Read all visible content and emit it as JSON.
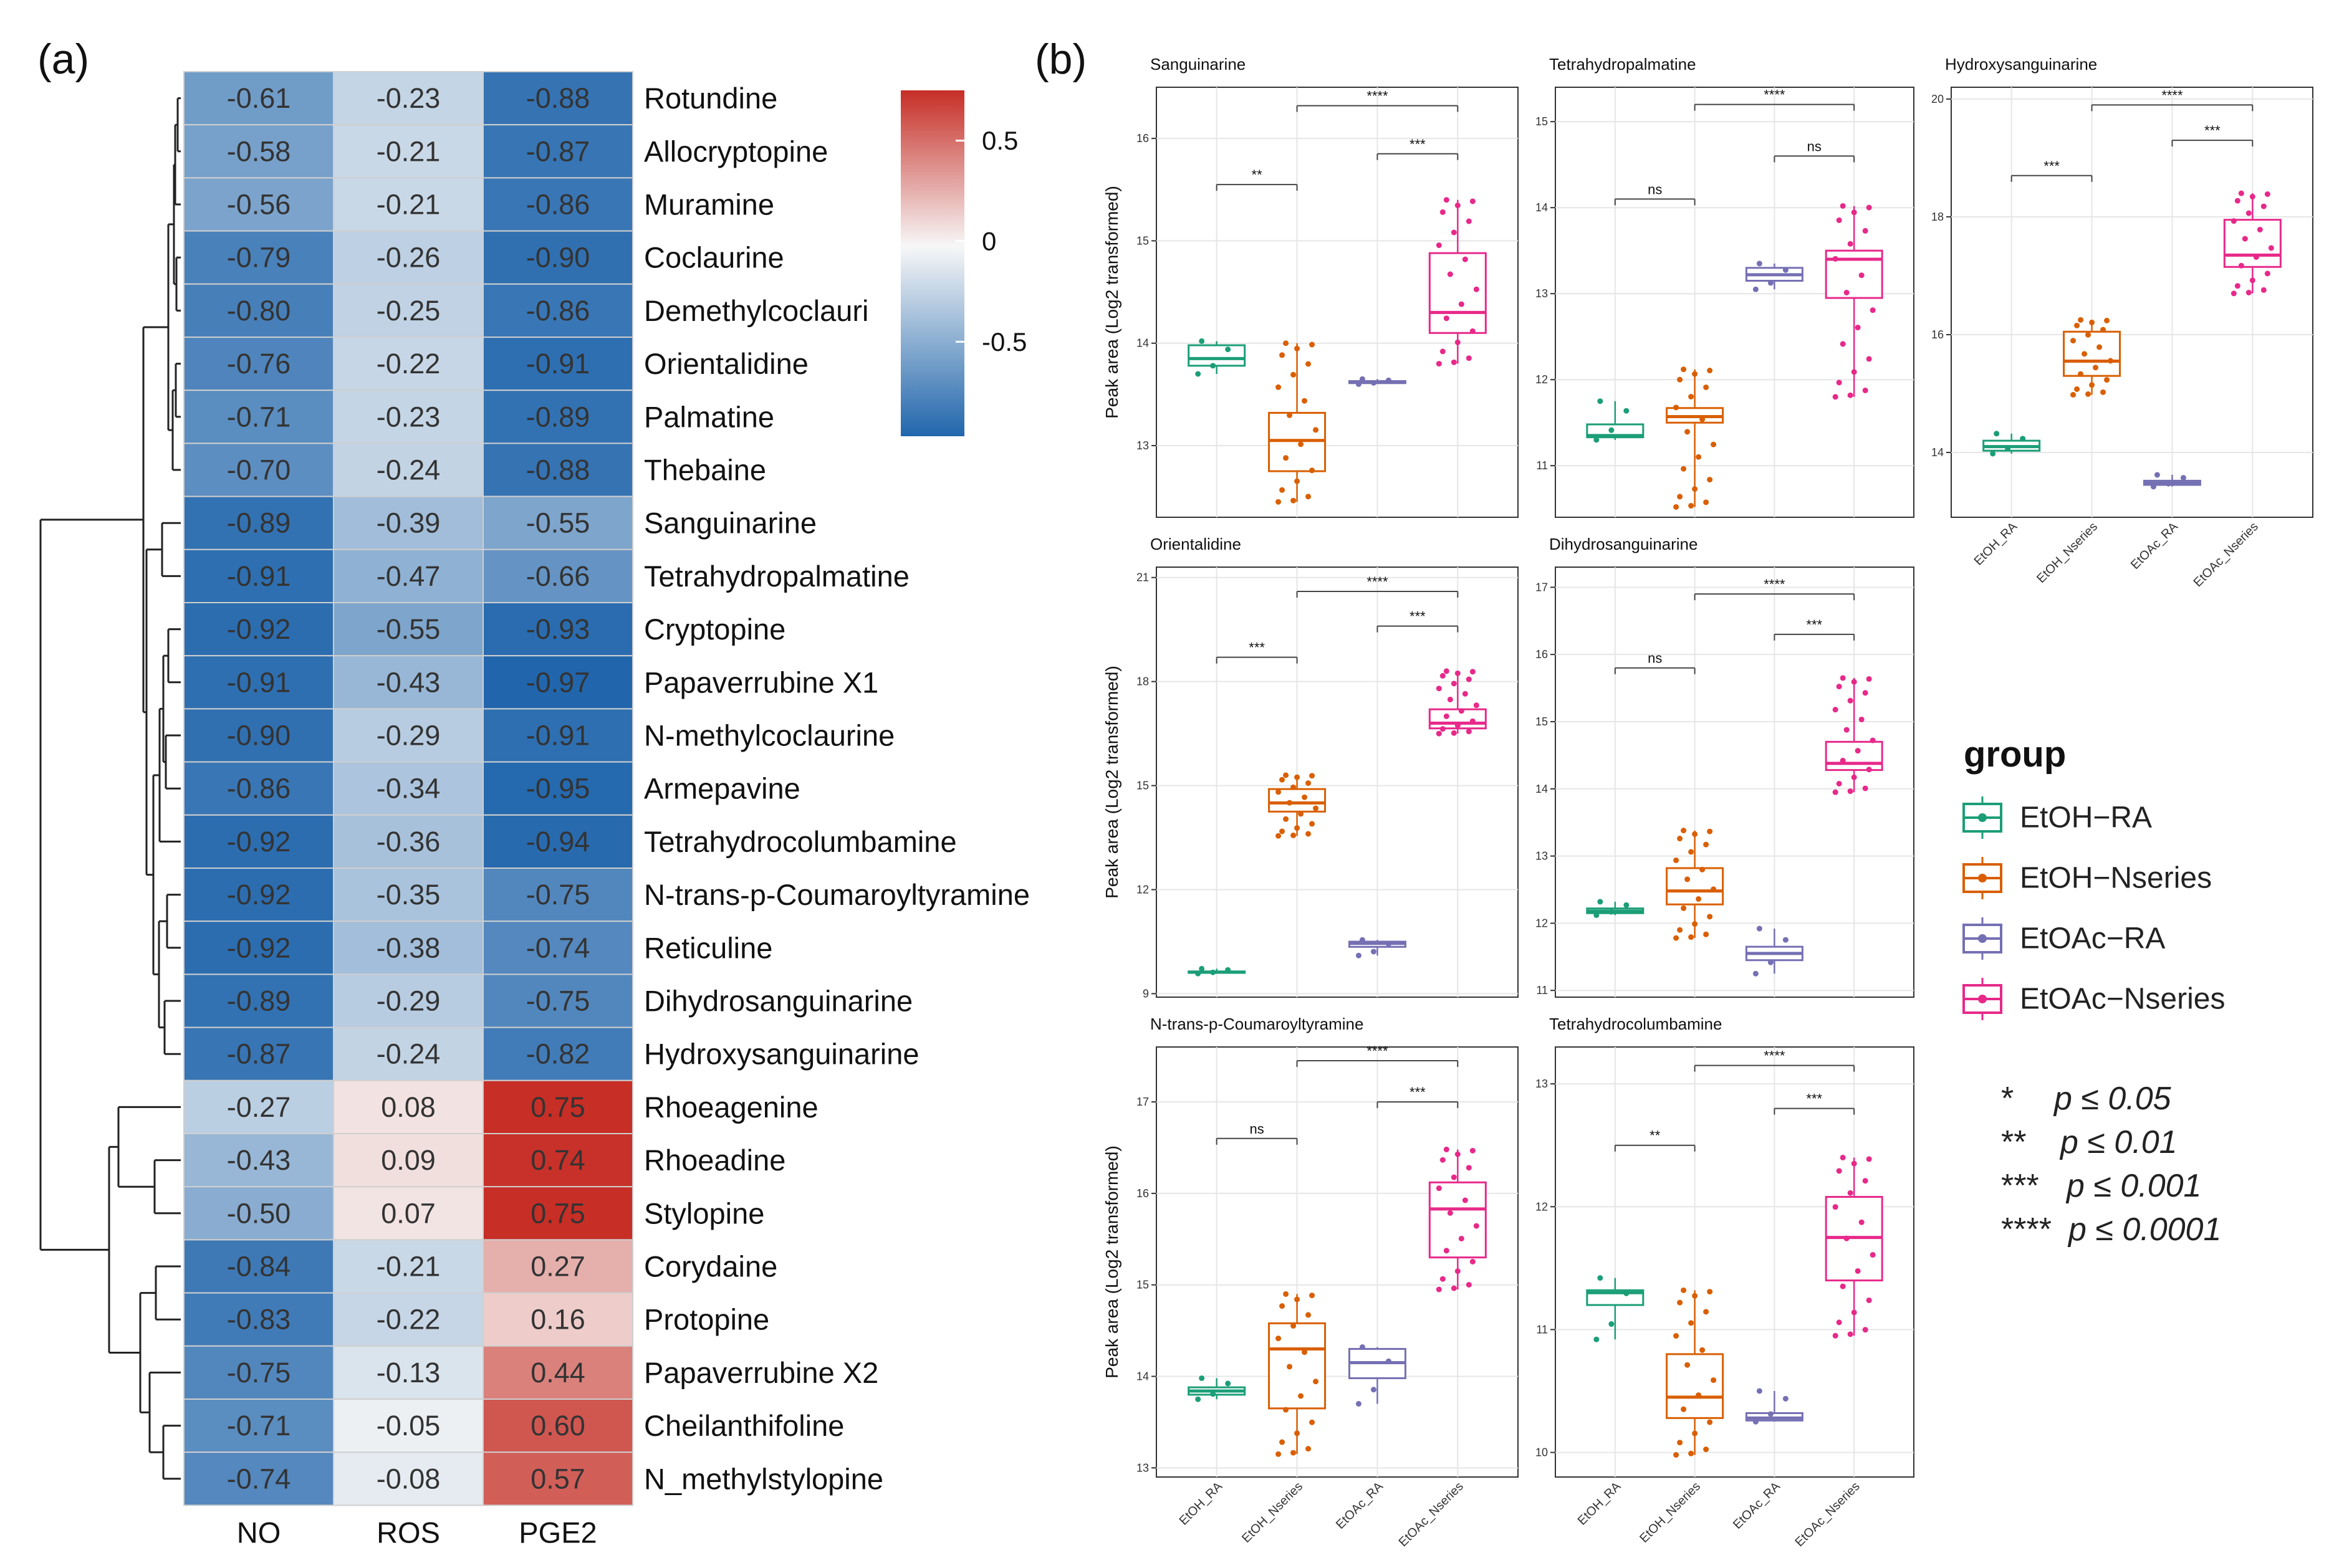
{
  "panel_labels": [
    "(a)",
    "(b)"
  ],
  "heatmap": {
    "columns": [
      "NO",
      "ROS",
      "PGE2"
    ],
    "rows": [
      "Rotundine",
      "Allocryptopine",
      "Muramine",
      "Coclaurine",
      "Demethylcoclauri",
      "Orientalidine",
      "Palmatine",
      "Thebaine",
      "Sanguinarine",
      "Tetrahydropalmatine",
      "Cryptopine",
      "Papaverrubine X1",
      "N-methylcoclaurine",
      "Armepavine",
      "Tetrahydrocolumbamine",
      "N-trans-p-Coumaroyltyramine",
      "Reticuline",
      "Dihydrosanguinarine",
      "Hydroxysanguinarine",
      "Rhoeagenine",
      "Rhoeadine",
      "Stylopine",
      "Corydaine",
      "Protopine",
      "Papaverrubine X2",
      "Cheilanthifoline",
      "N_methylstylopine"
    ],
    "values": [
      [
        -0.61,
        -0.23,
        -0.88
      ],
      [
        -0.58,
        -0.21,
        -0.87
      ],
      [
        -0.56,
        -0.21,
        -0.86
      ],
      [
        -0.79,
        -0.26,
        -0.9
      ],
      [
        -0.8,
        -0.25,
        -0.86
      ],
      [
        -0.76,
        -0.22,
        -0.91
      ],
      [
        -0.71,
        -0.23,
        -0.89
      ],
      [
        -0.7,
        -0.24,
        -0.88
      ],
      [
        -0.89,
        -0.39,
        -0.55
      ],
      [
        -0.91,
        -0.47,
        -0.66
      ],
      [
        -0.92,
        -0.55,
        -0.93
      ],
      [
        -0.91,
        -0.43,
        -0.97
      ],
      [
        -0.9,
        -0.29,
        -0.91
      ],
      [
        -0.86,
        -0.34,
        -0.95
      ],
      [
        -0.92,
        -0.36,
        -0.94
      ],
      [
        -0.92,
        -0.35,
        -0.75
      ],
      [
        -0.92,
        -0.38,
        -0.74
      ],
      [
        -0.89,
        -0.29,
        -0.75
      ],
      [
        -0.87,
        -0.24,
        -0.82
      ],
      [
        -0.27,
        0.08,
        0.75
      ],
      [
        -0.43,
        0.09,
        0.74
      ],
      [
        -0.5,
        0.07,
        0.75
      ],
      [
        -0.84,
        -0.21,
        0.27
      ],
      [
        -0.83,
        -0.22,
        0.16
      ],
      [
        -0.75,
        -0.13,
        0.44
      ],
      [
        -0.71,
        -0.05,
        0.6
      ],
      [
        -0.74,
        -0.08,
        0.57
      ]
    ],
    "value_labels": [
      [
        "-0.61",
        "-0.23",
        "-0.88"
      ],
      [
        "-0.58",
        "-0.21",
        "-0.87"
      ],
      [
        "-0.56",
        "-0.21",
        "-0.86"
      ],
      [
        "-0.79",
        "-0.26",
        "-0.90"
      ],
      [
        "-0.80",
        "-0.25",
        "-0.86"
      ],
      [
        "-0.76",
        "-0.22",
        "-0.91"
      ],
      [
        "-0.71",
        "-0.23",
        "-0.89"
      ],
      [
        "-0.70",
        "-0.24",
        "-0.88"
      ],
      [
        "-0.89",
        "-0.39",
        "-0.55"
      ],
      [
        "-0.91",
        "-0.47",
        "-0.66"
      ],
      [
        "-0.92",
        "-0.55",
        "-0.93"
      ],
      [
        "-0.91",
        "-0.43",
        "-0.97"
      ],
      [
        "-0.90",
        "-0.29",
        "-0.91"
      ],
      [
        "-0.86",
        "-0.34",
        "-0.95"
      ],
      [
        "-0.92",
        "-0.36",
        "-0.94"
      ],
      [
        "-0.92",
        "-0.35",
        "-0.75"
      ],
      [
        "-0.92",
        "-0.38",
        "-0.74"
      ],
      [
        "-0.89",
        "-0.29",
        "-0.75"
      ],
      [
        "-0.87",
        "-0.24",
        "-0.82"
      ],
      [
        "-0.27",
        "0.08",
        "0.75"
      ],
      [
        "-0.43",
        "0.09",
        "0.74"
      ],
      [
        "-0.50",
        "0.07",
        "0.75"
      ],
      [
        "-0.84",
        "-0.21",
        "0.27"
      ],
      [
        "-0.83",
        "-0.22",
        "0.16"
      ],
      [
        "-0.75",
        "-0.13",
        "0.44"
      ],
      [
        "-0.71",
        "-0.05",
        "0.60"
      ],
      [
        "-0.74",
        "-0.08",
        "0.57"
      ]
    ],
    "colorbar": {
      "ticks": [
        0.5,
        0,
        -0.5
      ],
      "tick_labels": [
        "0.5",
        "0",
        "-0.5"
      ],
      "min": -0.97,
      "max": 0.75
    },
    "colors": {
      "low": "#2166ac",
      "mid": "#f7f7f7",
      "high": "#c62e26"
    },
    "dendrogram": "rows clustered into two main groups: rows 1-19 and rows 20-27"
  },
  "boxplots": {
    "ylabel": "Peak area (Log2 transformed)",
    "groups": [
      "EtOH_RA",
      "EtOH_Nseries",
      "EtOAc_RA",
      "EtOAc_Nseries"
    ],
    "colors": [
      "#1b9e77",
      "#d95f02",
      "#7570b3",
      "#e7298a"
    ],
    "panels": [
      {
        "title": "Sanguinarine",
        "ylim": [
          12.3,
          16.5
        ],
        "yticks": [
          13,
          14,
          15,
          16
        ],
        "show_xticks": false,
        "boxes": [
          [
            13.7,
            13.78,
            13.85,
            13.98,
            14.02
          ],
          [
            12.45,
            12.75,
            13.05,
            13.32,
            14.0
          ],
          [
            13.6,
            13.61,
            13.62,
            13.63,
            13.65
          ],
          [
            13.8,
            14.1,
            14.3,
            14.88,
            15.4
          ]
        ],
        "sigs": [
          {
            "a": 0,
            "b": 1,
            "text": "**",
            "y": 15.55
          },
          {
            "a": 2,
            "b": 3,
            "text": "***",
            "y": 15.85
          },
          {
            "a": 1,
            "b": 3,
            "text": "****",
            "y": 16.32
          }
        ]
      },
      {
        "title": "Tetrahydropalmatine",
        "ylim": [
          10.4,
          15.4
        ],
        "yticks": [
          11,
          12,
          13,
          14,
          15
        ],
        "show_xticks": false,
        "boxes": [
          [
            11.3,
            11.33,
            11.35,
            11.48,
            11.75
          ],
          [
            10.52,
            11.5,
            11.57,
            11.67,
            12.12
          ],
          [
            13.05,
            13.15,
            13.22,
            13.3,
            13.35
          ],
          [
            11.8,
            12.95,
            13.4,
            13.5,
            14.02
          ]
        ],
        "sigs": [
          {
            "a": 0,
            "b": 1,
            "text": "ns",
            "y": 14.1
          },
          {
            "a": 2,
            "b": 3,
            "text": "ns",
            "y": 14.6
          },
          {
            "a": 1,
            "b": 3,
            "text": "****",
            "y": 15.2
          }
        ]
      },
      {
        "title": "Hydroxysanguinarine",
        "ylim": [
          12.9,
          20.2
        ],
        "yticks": [
          14,
          16,
          18,
          20
        ],
        "show_xticks": true,
        "boxes": [
          [
            13.98,
            14.03,
            14.1,
            14.2,
            14.32
          ],
          [
            14.98,
            15.3,
            15.55,
            16.05,
            16.25
          ],
          [
            13.42,
            13.45,
            13.48,
            13.52,
            13.62
          ],
          [
            16.7,
            17.15,
            17.35,
            17.95,
            18.4
          ]
        ],
        "sigs": [
          {
            "a": 0,
            "b": 1,
            "text": "***",
            "y": 18.7
          },
          {
            "a": 2,
            "b": 3,
            "text": "***",
            "y": 19.3
          },
          {
            "a": 1,
            "b": 3,
            "text": "****",
            "y": 19.9
          }
        ]
      },
      {
        "title": "Orientalidine",
        "ylim": [
          8.9,
          21.3
        ],
        "yticks": [
          9,
          12,
          15,
          18,
          21
        ],
        "show_xticks": false,
        "boxes": [
          [
            9.58,
            9.6,
            9.62,
            9.64,
            9.72
          ],
          [
            13.55,
            14.25,
            14.5,
            14.9,
            15.3
          ],
          [
            10.1,
            10.35,
            10.45,
            10.5,
            10.55
          ],
          [
            16.5,
            16.65,
            16.8,
            17.2,
            18.3
          ]
        ],
        "sigs": [
          {
            "a": 0,
            "b": 1,
            "text": "***",
            "y": 18.7
          },
          {
            "a": 2,
            "b": 3,
            "text": "***",
            "y": 19.6
          },
          {
            "a": 1,
            "b": 3,
            "text": "****",
            "y": 20.6
          }
        ]
      },
      {
        "title": "Dihydrosanguinarine",
        "ylim": [
          10.9,
          17.3
        ],
        "yticks": [
          11,
          12,
          13,
          14,
          15,
          16,
          17
        ],
        "show_xticks": false,
        "boxes": [
          [
            12.12,
            12.15,
            12.18,
            12.22,
            12.32
          ],
          [
            11.78,
            12.28,
            12.48,
            12.82,
            13.38
          ],
          [
            11.25,
            11.45,
            11.55,
            11.65,
            11.92
          ],
          [
            13.95,
            14.28,
            14.38,
            14.7,
            15.65
          ]
        ],
        "sigs": [
          {
            "a": 0,
            "b": 1,
            "text": "ns",
            "y": 15.8
          },
          {
            "a": 2,
            "b": 3,
            "text": "***",
            "y": 16.3
          },
          {
            "a": 1,
            "b": 3,
            "text": "****",
            "y": 16.9
          }
        ]
      },
      {
        "title": "N-trans-p-Coumaroyltyramine",
        "ylim": [
          12.9,
          17.6
        ],
        "yticks": [
          13,
          14,
          15,
          16,
          17
        ],
        "show_xticks": true,
        "boxes": [
          [
            13.75,
            13.8,
            13.84,
            13.88,
            13.98
          ],
          [
            13.15,
            13.65,
            14.3,
            14.58,
            14.9
          ],
          [
            13.7,
            13.98,
            14.15,
            14.3,
            14.32
          ],
          [
            14.95,
            15.3,
            15.83,
            16.12,
            16.48
          ]
        ],
        "sigs": [
          {
            "a": 0,
            "b": 1,
            "text": "ns",
            "y": 16.6
          },
          {
            "a": 2,
            "b": 3,
            "text": "***",
            "y": 17.0
          },
          {
            "a": 1,
            "b": 3,
            "text": "****",
            "y": 17.45
          }
        ]
      },
      {
        "title": "Tetrahydrocolumbamine",
        "ylim": [
          9.8,
          13.3
        ],
        "yticks": [
          10,
          11,
          12,
          13
        ],
        "show_xticks": true,
        "boxes": [
          [
            10.92,
            11.2,
            11.3,
            11.32,
            11.42
          ],
          [
            9.98,
            10.28,
            10.45,
            10.8,
            11.32
          ],
          [
            10.25,
            10.26,
            10.28,
            10.32,
            10.5
          ],
          [
            10.95,
            11.4,
            11.75,
            12.08,
            12.4
          ]
        ],
        "sigs": [
          {
            "a": 0,
            "b": 1,
            "text": "**",
            "y": 12.5
          },
          {
            "a": 2,
            "b": 3,
            "text": "***",
            "y": 12.8
          },
          {
            "a": 1,
            "b": 3,
            "text": "****",
            "y": 13.15
          }
        ]
      }
    ]
  },
  "legend": {
    "title": "group",
    "items": [
      "EtOH−RA",
      "EtOH−Nseries",
      "EtOAc−RA",
      "EtOAc−Nseries"
    ]
  },
  "pvalue_notes": [
    {
      "stars": "*",
      "text": "p ≤ 0.05"
    },
    {
      "stars": "**",
      "text": "p ≤ 0.01"
    },
    {
      "stars": "***",
      "text": "p ≤ 0.001"
    },
    {
      "stars": "****",
      "text": "p ≤ 0.0001"
    }
  ],
  "chart_data": [
    {
      "type": "heatmap",
      "title": "",
      "x": [
        "NO",
        "ROS",
        "PGE2"
      ],
      "y": [
        "Rotundine",
        "Allocryptopine",
        "Muramine",
        "Coclaurine",
        "Demethylcoclauri",
        "Orientalidine",
        "Palmatine",
        "Thebaine",
        "Sanguinarine",
        "Tetrahydropalmatine",
        "Cryptopine",
        "Papaverrubine X1",
        "N-methylcoclaurine",
        "Armepavine",
        "Tetrahydrocolumbamine",
        "N-trans-p-Coumaroyltyramine",
        "Reticuline",
        "Dihydrosanguinarine",
        "Hydroxysanguinarine",
        "Rhoeagenine",
        "Rhoeadine",
        "Stylopine",
        "Corydaine",
        "Protopine",
        "Papaverrubine X2",
        "Cheilanthifoline",
        "N_methylstylopine"
      ],
      "colorbar_ticks": [
        -0.5,
        0,
        0.5
      ]
    },
    {
      "type": "box",
      "ylabel": "Peak area (Log2 transformed)",
      "categories": [
        "EtOH_RA",
        "EtOH_Nseries",
        "EtOAc_RA",
        "EtOAc_Nseries"
      ],
      "panels": [
        "Sanguinarine",
        "Tetrahydropalmatine",
        "Hydroxysanguinarine",
        "Orientalidine",
        "Dihydrosanguinarine",
        "N-trans-p-Coumaroyltyramine",
        "Tetrahydrocolumbamine"
      ],
      "legend_position": "right"
    }
  ]
}
